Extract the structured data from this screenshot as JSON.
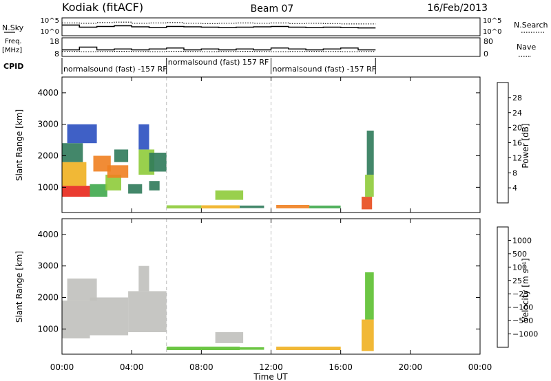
{
  "header": {
    "station": "Kodiak (fitACF)",
    "beam": "Beam 07",
    "date": "16/Feb/2013"
  },
  "summary": {
    "nsky_label": "N.Sky",
    "nsearch_label": "N.Search",
    "freq_label_top": "Freq.",
    "freq_label_unit": "[MHz]",
    "nave_label": "Nave",
    "cpid_label": "CPID",
    "noise_ticks_left": [
      "10^5",
      "10^0"
    ],
    "noise_ticks_right": [
      "10^5",
      "10^0"
    ],
    "freq_ticks": [
      "18",
      "8"
    ],
    "nave_ticks": [
      "80",
      "0"
    ],
    "cpid_segments": [
      {
        "start_hour": 0,
        "end_hour": 6,
        "label": "normalsound (fast) -157 RF"
      },
      {
        "start_hour": 6,
        "end_hour": 12,
        "label": "normalsound (fast) 157 RF"
      },
      {
        "start_hour": 12,
        "end_hour": 18,
        "label": "normalsound (fast) -157 RF"
      }
    ]
  },
  "axes": {
    "xlabel": "Time UT",
    "x_ticks": [
      "00:00",
      "04:00",
      "08:00",
      "12:00",
      "16:00",
      "20:00",
      "00:00"
    ],
    "ylabel": "Slant Range [km]",
    "y_ticks": [
      "1000",
      "2000",
      "3000",
      "4000"
    ]
  },
  "power_scale": {
    "label": "Power [dB]",
    "ticks": [
      "4",
      "8",
      "12",
      "16",
      "20",
      "24",
      "28"
    ],
    "colors": [
      "#0a1ee6",
      "#2a4fc0",
      "#2f7a5a",
      "#3fa84c",
      "#8ecb3a",
      "#f0b020",
      "#f08020",
      "#e84a1c",
      "#e8261a",
      "#e01010"
    ]
  },
  "velocity_scale": {
    "label": "Velocity [m s⁻¹]",
    "ticks": [
      "1000",
      "500",
      "100",
      "25",
      "−25",
      "−100",
      "−500",
      "−1000"
    ],
    "colors": [
      "#1e3cc8",
      "#2a6cc0",
      "#2f8a5a",
      "#5cc030",
      "#c0c0bc",
      "#f0b020",
      "#f08a20",
      "#e8501c",
      "#e01010"
    ]
  },
  "chart_data": [
    {
      "type": "line",
      "title": "Kodiak (fitACF)  Beam 07  16/Feb/2013",
      "series": [
        {
          "name": "N.Sky",
          "values": [
            3,
            2.4,
            2.6,
            2.8,
            2.5,
            2.3,
            2.6,
            2.5,
            2.4,
            2.3,
            2.4,
            2.5,
            2.6,
            2.4,
            2.3,
            2.4,
            2.3,
            2.2
          ]
        },
        {
          "name": "N.Search",
          "values": [
            3.6,
            3.5,
            3.7,
            3.8,
            3.5,
            3.6,
            3.7,
            3.5,
            3.4,
            3.5,
            3.6,
            3.5,
            3.6,
            3.4,
            3.5,
            3.4,
            3.3,
            3.3
          ]
        }
      ],
      "x": [
        0.5,
        1.5,
        2.5,
        3.5,
        4.5,
        5.5,
        6.5,
        7.5,
        8.5,
        9.5,
        10.5,
        11.5,
        12.5,
        13.5,
        14.5,
        15.5,
        16.5,
        17.5
      ],
      "xlim": [
        0,
        24
      ],
      "ylim": [
        0,
        5
      ]
    },
    {
      "type": "line",
      "series": [
        {
          "name": "Freq.",
          "values": [
            11.5,
            13,
            11.5,
            12,
            11.5,
            12,
            12.5,
            11.5,
            12,
            11.5,
            12,
            11.5,
            12.5,
            12,
            11.5,
            12,
            12.5,
            11.5
          ]
        },
        {
          "name": "Nave",
          "values": [
            22,
            20,
            21,
            22,
            21,
            20,
            22,
            21,
            20,
            21,
            22,
            21,
            20,
            21,
            22,
            21,
            20,
            21
          ]
        }
      ],
      "x": [
        0.5,
        1.5,
        2.5,
        3.5,
        4.5,
        5.5,
        6.5,
        7.5,
        8.5,
        9.5,
        10.5,
        11.5,
        12.5,
        13.5,
        14.5,
        15.5,
        16.5,
        17.5
      ],
      "xlim": [
        0,
        24
      ],
      "ylim": [
        8,
        18
      ]
    },
    {
      "type": "heatmap",
      "ylabel": "Slant Range [km]",
      "xlabel": "Time UT",
      "xlim": [
        0,
        24
      ],
      "ylim": [
        200,
        4500
      ],
      "colorbar": "Power [dB]",
      "x_ticks": [
        "00:00",
        "04:00",
        "08:00",
        "12:00",
        "16:00",
        "20:00",
        "00:00"
      ],
      "y_ticks": [
        1000,
        2000,
        3000,
        4000
      ],
      "patches": [
        {
          "t0": 0.0,
          "t1": 1.6,
          "r0": 700,
          "r1": 1050,
          "power": 26
        },
        {
          "t0": 0.0,
          "t1": 1.4,
          "r0": 1050,
          "r1": 1800,
          "power": 16
        },
        {
          "t0": 0.0,
          "t1": 1.2,
          "r0": 1800,
          "r1": 2400,
          "power": 8
        },
        {
          "t0": 0.3,
          "t1": 2.0,
          "r0": 2400,
          "r1": 3000,
          "power": 5
        },
        {
          "t0": 1.6,
          "t1": 2.6,
          "r0": 700,
          "r1": 1100,
          "power": 10
        },
        {
          "t0": 1.8,
          "t1": 2.8,
          "r0": 1500,
          "r1": 2000,
          "power": 18
        },
        {
          "t0": 2.5,
          "t1": 3.4,
          "r0": 900,
          "r1": 1400,
          "power": 14
        },
        {
          "t0": 2.6,
          "t1": 3.8,
          "r0": 1300,
          "r1": 1700,
          "power": 20
        },
        {
          "t0": 3.0,
          "t1": 3.8,
          "r0": 1800,
          "r1": 2200,
          "power": 8
        },
        {
          "t0": 3.8,
          "t1": 4.6,
          "r0": 800,
          "r1": 1100,
          "power": 6
        },
        {
          "t0": 4.4,
          "t1": 5.3,
          "r0": 1400,
          "r1": 2200,
          "power": 14
        },
        {
          "t0": 4.4,
          "t1": 5.0,
          "r0": 2200,
          "r1": 3000,
          "power": 5
        },
        {
          "t0": 5.0,
          "t1": 6.0,
          "r0": 1500,
          "r1": 2100,
          "power": 6
        },
        {
          "t0": 5.0,
          "t1": 5.6,
          "r0": 900,
          "r1": 1200,
          "power": 6
        },
        {
          "t0": 6.0,
          "t1": 8.0,
          "r0": 330,
          "r1": 430,
          "power": 14
        },
        {
          "t0": 8.0,
          "t1": 10.2,
          "r0": 330,
          "r1": 430,
          "power": 16
        },
        {
          "t0": 8.8,
          "t1": 10.4,
          "r0": 600,
          "r1": 900,
          "power": 14
        },
        {
          "t0": 10.2,
          "t1": 11.6,
          "r0": 340,
          "r1": 420,
          "power": 8
        },
        {
          "t0": 12.3,
          "t1": 14.2,
          "r0": 330,
          "r1": 440,
          "power": 20
        },
        {
          "t0": 14.2,
          "t1": 16.0,
          "r0": 330,
          "r1": 420,
          "power": 10
        },
        {
          "t0": 17.2,
          "t1": 17.8,
          "r0": 300,
          "r1": 700,
          "power": 22
        },
        {
          "t0": 17.4,
          "t1": 17.9,
          "r0": 700,
          "r1": 1400,
          "power": 14
        },
        {
          "t0": 17.5,
          "t1": 17.9,
          "r0": 1400,
          "r1": 2800,
          "power": 6
        }
      ]
    },
    {
      "type": "heatmap",
      "ylabel": "Slant Range [km]",
      "xlabel": "Time UT",
      "xlim": [
        0,
        24
      ],
      "ylim": [
        200,
        4500
      ],
      "colorbar": "Velocity [m s⁻¹]",
      "x_ticks": [
        "00:00",
        "04:00",
        "08:00",
        "12:00",
        "16:00",
        "20:00",
        "00:00"
      ],
      "y_ticks": [
        1000,
        2000,
        3000,
        4000
      ],
      "patches": [
        {
          "t0": 0.0,
          "t1": 1.6,
          "r0": 700,
          "r1": 1900,
          "velocity": 0
        },
        {
          "t0": 0.3,
          "t1": 2.0,
          "r0": 1900,
          "r1": 2600,
          "velocity": 0
        },
        {
          "t0": 1.6,
          "t1": 3.8,
          "r0": 800,
          "r1": 2000,
          "velocity": 0
        },
        {
          "t0": 3.8,
          "t1": 6.0,
          "r0": 900,
          "r1": 2200,
          "velocity": 0
        },
        {
          "t0": 4.4,
          "t1": 5.0,
          "r0": 2200,
          "r1": 3000,
          "velocity": 0
        },
        {
          "t0": 6.0,
          "t1": 10.2,
          "r0": 330,
          "r1": 440,
          "velocity": 50
        },
        {
          "t0": 8.8,
          "t1": 10.4,
          "r0": 550,
          "r1": 900,
          "velocity": 0
        },
        {
          "t0": 10.2,
          "t1": 11.6,
          "r0": 340,
          "r1": 420,
          "velocity": 50
        },
        {
          "t0": 12.3,
          "t1": 16.0,
          "r0": 330,
          "r1": 440,
          "velocity": -50
        },
        {
          "t0": 17.2,
          "t1": 17.9,
          "r0": 300,
          "r1": 1300,
          "velocity": -80
        },
        {
          "t0": 17.4,
          "t1": 17.9,
          "r0": 1300,
          "r1": 2800,
          "velocity": 30
        }
      ]
    }
  ]
}
